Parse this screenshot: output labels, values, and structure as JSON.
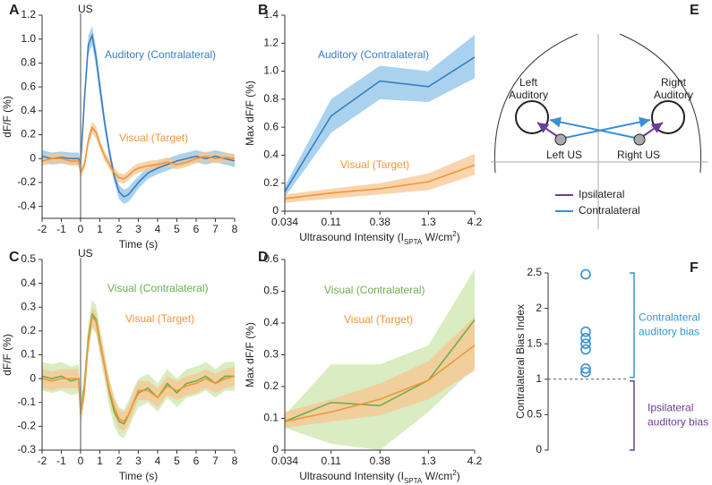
{
  "chart_data": [
    {
      "panel": "A",
      "type": "line",
      "xlabel": "Time (s)",
      "ylabel": "dF/F (%)",
      "annotation": "US",
      "vline": 0,
      "x": [
        -2,
        -1.5,
        -1,
        -0.5,
        -0.1,
        0,
        0.2,
        0.4,
        0.6,
        0.8,
        1,
        1.25,
        1.5,
        1.75,
        2,
        2.25,
        2.5,
        2.75,
        3,
        3.5,
        4,
        4.5,
        5,
        5.5,
        6,
        6.5,
        7,
        7.5,
        8
      ],
      "xlim": [
        -2,
        8
      ],
      "xticks": [
        -2,
        -1,
        0,
        1,
        2,
        3,
        4,
        5,
        6,
        7,
        8
      ],
      "ylim": [
        -0.5,
        1.2
      ],
      "yticks": [
        -0.4,
        -0.2,
        0,
        0.2,
        0.4,
        0.6,
        0.8,
        {
          "value": 1,
          "label": "1.0"
        },
        1.2
      ],
      "series": [
        {
          "name": "Auditory (Contralateral)",
          "color": "#3a7dbf",
          "band_color": "#8cc3ea",
          "values": [
            0.02,
            0,
            0.01,
            0,
            0,
            -0.05,
            0.5,
            0.95,
            1.03,
            0.85,
            0.6,
            0.3,
            0.05,
            -0.15,
            -0.28,
            -0.32,
            -0.3,
            -0.25,
            -0.2,
            -0.12,
            -0.08,
            -0.05,
            -0.02,
            0,
            0.02,
            0,
            0.02,
            0,
            -0.02
          ],
          "lower": [
            -0.03,
            -0.05,
            -0.04,
            -0.05,
            -0.05,
            -0.1,
            0.44,
            0.87,
            0.95,
            0.77,
            0.52,
            0.24,
            0,
            -0.2,
            -0.34,
            -0.38,
            -0.36,
            -0.31,
            -0.25,
            -0.17,
            -0.13,
            -0.1,
            -0.07,
            -0.05,
            -0.03,
            -0.05,
            -0.03,
            -0.05,
            -0.07
          ],
          "upper": [
            0.07,
            0.05,
            0.06,
            0.05,
            0.05,
            0,
            0.56,
            1.03,
            1.11,
            0.93,
            0.68,
            0.36,
            0.1,
            -0.1,
            -0.22,
            -0.26,
            -0.24,
            -0.19,
            -0.15,
            -0.07,
            -0.03,
            0,
            0.03,
            0.05,
            0.07,
            0.05,
            0.07,
            0.05,
            0.03
          ]
        },
        {
          "name": "Visual (Target)",
          "color": "#f0963a",
          "band_color": "#f7c590",
          "values": [
            -0.02,
            0,
            0,
            -0.02,
            -0.02,
            -0.12,
            -0.05,
            0.15,
            0.26,
            0.22,
            0.12,
            0.02,
            -0.05,
            -0.12,
            -0.16,
            -0.17,
            -0.14,
            -0.1,
            -0.08,
            -0.06,
            -0.05,
            -0.03,
            -0.05,
            -0.03,
            0,
            0.02,
            0,
            0.01,
            0
          ],
          "lower": [
            -0.06,
            -0.04,
            -0.04,
            -0.06,
            -0.06,
            -0.16,
            -0.09,
            0.1,
            0.21,
            0.17,
            0.08,
            -0.02,
            -0.09,
            -0.16,
            -0.2,
            -0.21,
            -0.18,
            -0.14,
            -0.12,
            -0.1,
            -0.09,
            -0.07,
            -0.09,
            -0.07,
            -0.04,
            -0.02,
            -0.04,
            -0.03,
            -0.04
          ],
          "upper": [
            0.02,
            0.04,
            0.04,
            0.02,
            0.02,
            -0.08,
            -0.01,
            0.2,
            0.31,
            0.27,
            0.16,
            0.06,
            -0.01,
            -0.08,
            -0.12,
            -0.13,
            -0.1,
            -0.06,
            -0.04,
            -0.02,
            -0.01,
            0.01,
            -0.01,
            0.01,
            0.04,
            0.06,
            0.04,
            0.05,
            0.04
          ]
        }
      ]
    },
    {
      "panel": "B",
      "type": "line",
      "xscale": "log",
      "xlabel": [
        "Ultrasound Intensity (I",
        "SPTA",
        " W/cm",
        "2",
        ")"
      ],
      "ylabel": "Max dF/F (%)",
      "x": [
        0.034,
        0.11,
        0.38,
        1.3,
        4.2
      ],
      "xlim": [
        0.034,
        4.2
      ],
      "xticks": [
        0.034,
        0.11,
        0.38,
        1.3,
        4.2
      ],
      "ylim": [
        0,
        1.4
      ],
      "yticks": [
        0,
        0.2,
        0.4,
        0.6,
        0.8,
        {
          "value": 1,
          "label": "1.0"
        },
        1.2,
        1.4
      ],
      "series": [
        {
          "name": "Auditory (Contralateral)",
          "color": "#3a7dbf",
          "band_color": "#8cc3ea",
          "values": [
            0.14,
            0.68,
            0.93,
            0.89,
            1.1
          ],
          "lower": [
            0.1,
            0.56,
            0.8,
            0.78,
            0.95
          ],
          "upper": [
            0.18,
            0.8,
            1.04,
            1.0,
            1.26
          ]
        },
        {
          "name": "Visual (Target)",
          "color": "#f0963a",
          "band_color": "#f7c590",
          "values": [
            0.09,
            0.13,
            0.16,
            0.21,
            0.33
          ],
          "lower": [
            0.06,
            0.09,
            0.12,
            0.15,
            0.26
          ],
          "upper": [
            0.12,
            0.16,
            0.2,
            0.27,
            0.41
          ]
        }
      ]
    },
    {
      "panel": "C",
      "type": "line",
      "xlabel": "Time (s)",
      "ylabel": "dF/F (%)",
      "annotation": "US",
      "vline": 0,
      "x": [
        -2,
        -1.5,
        -1,
        -0.5,
        -0.1,
        0,
        0.2,
        0.4,
        0.6,
        0.8,
        1,
        1.25,
        1.5,
        1.75,
        2,
        2.25,
        2.5,
        2.75,
        3,
        3.5,
        4,
        4.5,
        5,
        5.5,
        6,
        6.5,
        7,
        7.5,
        8
      ],
      "xlim": [
        -2,
        8
      ],
      "xticks": [
        -2,
        -1,
        0,
        1,
        2,
        3,
        4,
        5,
        6,
        7,
        8
      ],
      "ylim": [
        -0.3,
        0.5
      ],
      "yticks": [
        -0.3,
        -0.2,
        -0.1,
        0,
        0.1,
        0.2,
        0.3,
        0.4,
        0.5
      ],
      "series": [
        {
          "name": "Visual (Contralateral)",
          "color": "#6ab04c",
          "band_color": "#cde6ac",
          "values": [
            0.01,
            0,
            0.01,
            -0.01,
            0,
            -0.14,
            -0.03,
            0.17,
            0.27,
            0.25,
            0.16,
            0.05,
            -0.06,
            -0.14,
            -0.18,
            -0.19,
            -0.15,
            -0.1,
            -0.06,
            -0.04,
            -0.08,
            -0.02,
            -0.06,
            -0.02,
            -0.01,
            0.01,
            -0.02,
            0.01,
            0.01
          ],
          "lower": [
            -0.05,
            -0.06,
            -0.05,
            -0.07,
            -0.06,
            -0.2,
            -0.09,
            0.11,
            0.21,
            0.19,
            0.1,
            -0.01,
            -0.12,
            -0.2,
            -0.24,
            -0.25,
            -0.21,
            -0.16,
            -0.12,
            -0.1,
            -0.14,
            -0.08,
            -0.12,
            -0.08,
            -0.07,
            -0.05,
            -0.08,
            -0.05,
            -0.05
          ],
          "upper": [
            0.07,
            0.06,
            0.07,
            0.05,
            0.06,
            -0.08,
            0.03,
            0.23,
            0.33,
            0.31,
            0.22,
            0.11,
            0,
            -0.08,
            -0.12,
            -0.13,
            -0.09,
            -0.04,
            0,
            0.02,
            -0.02,
            0.04,
            0,
            0.04,
            0.05,
            0.07,
            0.04,
            0.07,
            0.07
          ]
        },
        {
          "name": "Visual (Target)",
          "color": "#f0963a",
          "band_color": "#f7c590",
          "values": [
            0,
            -0.01,
            0,
            0,
            0,
            -0.15,
            -0.05,
            0.15,
            0.26,
            0.24,
            0.15,
            0.05,
            -0.05,
            -0.12,
            -0.17,
            -0.18,
            -0.15,
            -0.1,
            -0.05,
            -0.05,
            -0.08,
            -0.03,
            -0.05,
            -0.03,
            -0.02,
            0,
            -0.02,
            0,
            0.01
          ],
          "lower": [
            -0.04,
            -0.05,
            -0.04,
            -0.04,
            -0.04,
            -0.19,
            -0.09,
            0.11,
            0.22,
            0.2,
            0.11,
            0.01,
            -0.09,
            -0.16,
            -0.21,
            -0.22,
            -0.19,
            -0.14,
            -0.09,
            -0.09,
            -0.12,
            -0.07,
            -0.09,
            -0.07,
            -0.06,
            -0.04,
            -0.06,
            -0.04,
            -0.03
          ],
          "upper": [
            0.04,
            0.03,
            0.04,
            0.04,
            0.04,
            -0.11,
            -0.01,
            0.19,
            0.3,
            0.28,
            0.19,
            0.09,
            -0.01,
            -0.08,
            -0.13,
            -0.14,
            -0.11,
            -0.06,
            -0.01,
            -0.01,
            -0.04,
            0.01,
            -0.01,
            0.01,
            0.02,
            0.04,
            0.02,
            0.04,
            0.05
          ]
        }
      ]
    },
    {
      "panel": "D",
      "type": "line",
      "xscale": "log",
      "xlabel": [
        "Ultrasound Intensity (I",
        "SPTA",
        " W/cm",
        "2",
        ")"
      ],
      "ylabel": "Max dF/F (%)",
      "x": [
        0.034,
        0.11,
        0.38,
        1.3,
        4.2
      ],
      "xlim": [
        0.034,
        4.2
      ],
      "xticks": [
        0.034,
        0.11,
        0.38,
        1.3,
        4.2
      ],
      "ylim": [
        0,
        0.6
      ],
      "yticks": [
        0,
        0.1,
        0.2,
        0.3,
        0.4,
        0.5,
        0.6
      ],
      "series": [
        {
          "name": "Visual (Contralateral)",
          "color": "#6ab04c",
          "band_color": "#cde6ac",
          "values": [
            0.09,
            0.15,
            0.14,
            0.22,
            0.41
          ],
          "lower": [
            0.07,
            0.02,
            0,
            0.12,
            0.26
          ],
          "upper": [
            0.11,
            0.27,
            0.27,
            0.33,
            0.57
          ]
        },
        {
          "name": "Visual (Target)",
          "color": "#f0963a",
          "band_color": "#f7c590",
          "values": [
            0.09,
            0.12,
            0.16,
            0.22,
            0.33
          ],
          "lower": [
            0.07,
            0.09,
            0.11,
            0.16,
            0.25
          ],
          "upper": [
            0.12,
            0.16,
            0.21,
            0.28,
            0.42
          ]
        }
      ]
    },
    {
      "panel": "F",
      "type": "strip",
      "ylabel": "Contralateral Bias Index",
      "color": "#3a8fd0",
      "values": [
        2.48,
        1.67,
        1.58,
        1.5,
        1.42,
        1.15,
        1.1
      ],
      "hline": 1,
      "ylim": [
        0,
        2.5
      ],
      "yticks": [
        0,
        0.5,
        1,
        1.5,
        2,
        2.5
      ],
      "annotations": [
        {
          "lines": [
            "Contralateral",
            "auditory bias"
          ],
          "color": "#2a9ad0"
        },
        {
          "lines": [
            "Ipsilateral",
            "auditory bias"
          ],
          "color": "#6a3d9a"
        }
      ]
    }
  ],
  "diagram": {
    "panel": "E",
    "nodes": [
      {
        "label": [
          "Left",
          "Auditory"
        ]
      },
      {
        "label": [
          "Right",
          "Auditory"
        ]
      },
      {
        "label": "Left US"
      },
      {
        "label": "Right US"
      }
    ],
    "legend": [
      "Ipsilateral",
      "Contralateral"
    ]
  }
}
